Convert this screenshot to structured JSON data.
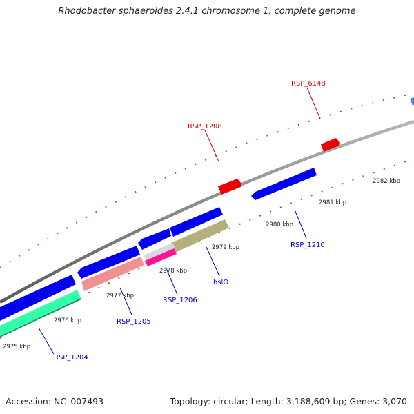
{
  "title": "Rhodobacter sphaeroides 2.4.1 chromosome 1, complete genome",
  "footer": {
    "accession": "Accession: NC_007493",
    "topology": "Topology: circular; Length: 3,188,609 bp; Genes: 3,070"
  },
  "colors": {
    "backbone": "#808080",
    "cds_forward": "#0000ee",
    "cds_reverse_green": "#33ffaa",
    "rrna_salmon": "#f09090",
    "magenta": "#ff1493",
    "olive": "#b4b07a",
    "red_feature": "#ee0000",
    "tick_green": "#228b22",
    "label_red": "#dd0000",
    "label_blue": "#0000cc"
  },
  "scale": {
    "ticks": [
      "2975 kbp",
      "2976 kbp",
      "2977 kbp",
      "2978 kbp",
      "2979 kbp",
      "2980 kbp",
      "2981 kbp",
      "2982 kbp"
    ]
  },
  "labels": {
    "rsp_6148": "RSP_6148",
    "rsp_1208": "RSP_1208",
    "rsp_1210": "RSP_1210",
    "hslo": "hslO",
    "rsp_1206": "RSP_1206",
    "rsp_1205": "RSP_1205",
    "rsp_1204": "RSP_1204"
  }
}
